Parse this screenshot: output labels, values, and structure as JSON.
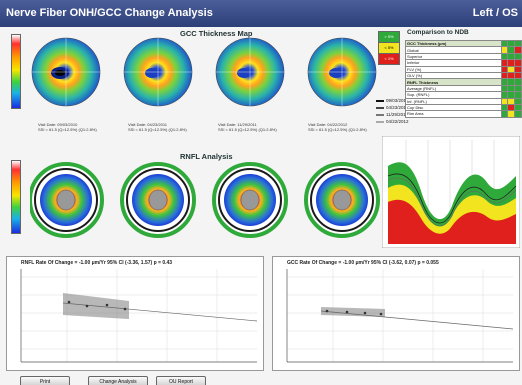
{
  "window": {
    "title": "Nerve Fiber ONH/GCC Change Analysis",
    "eye": "Left / OS"
  },
  "gcc_section": {
    "title": "GCC Thickness Map",
    "maps": [
      {
        "line1": "Visit Date: 09/03/2010",
        "line2": "SSI = 61.5 (Q=12.5%) (Q1:2.8%)"
      },
      {
        "line1": "Visit Date: 04/23/2011",
        "line2": "SSI = 61.5 (Q=12.5%) (Q1:2.8%)"
      },
      {
        "line1": "Visit Date: 11/29/2011",
        "line2": "SSI = 61.5 (Q=12.5%) (Q1:2.8%)"
      },
      {
        "line1": "Visit Date: 04/22/2012",
        "line2": "SSI = 61.5 (Q=12.5%) (Q1:2.8%)"
      }
    ]
  },
  "rnfl_section": {
    "title": "RNFL Analysis"
  },
  "legend_dates": [
    "09/03/2010",
    "04/23/2011",
    "11/29/2011",
    "04/22/2012"
  ],
  "ndb": {
    "title": "Comparison to NDB",
    "status_labels": [
      "> 5%",
      "< 5%",
      "< 1%"
    ],
    "gcc_rows": [
      "GCC Thickness (μm)",
      "Global",
      "Superior",
      "Inferior",
      "FLV (%)",
      "GLV (%)"
    ],
    "rnfl_rows": [
      "RNFL Thickness",
      "Average (RNFL)",
      "Sup. (RNFL)",
      "Inf. (RNFL)",
      "Cup Disc",
      "Rim Area"
    ],
    "colors": {
      "normal": "#2faa3a",
      "borderline": "#f2e41e",
      "outside": "#e0201c"
    }
  },
  "trend_left": {
    "header": "RNFL Rate Of Change = -1.00 μm/Yr   95% CI (-3.36, 1.57)   p = 0.43"
  },
  "trend_right": {
    "header": "GCC Rate Of Change = -1.00 μm/Yr   95% CI (-3.62, 0.07)   p = 0.055"
  },
  "buttons": {
    "print": "Print",
    "change_analysis": "Change Analysis",
    "ou_report": "OU Report"
  }
}
